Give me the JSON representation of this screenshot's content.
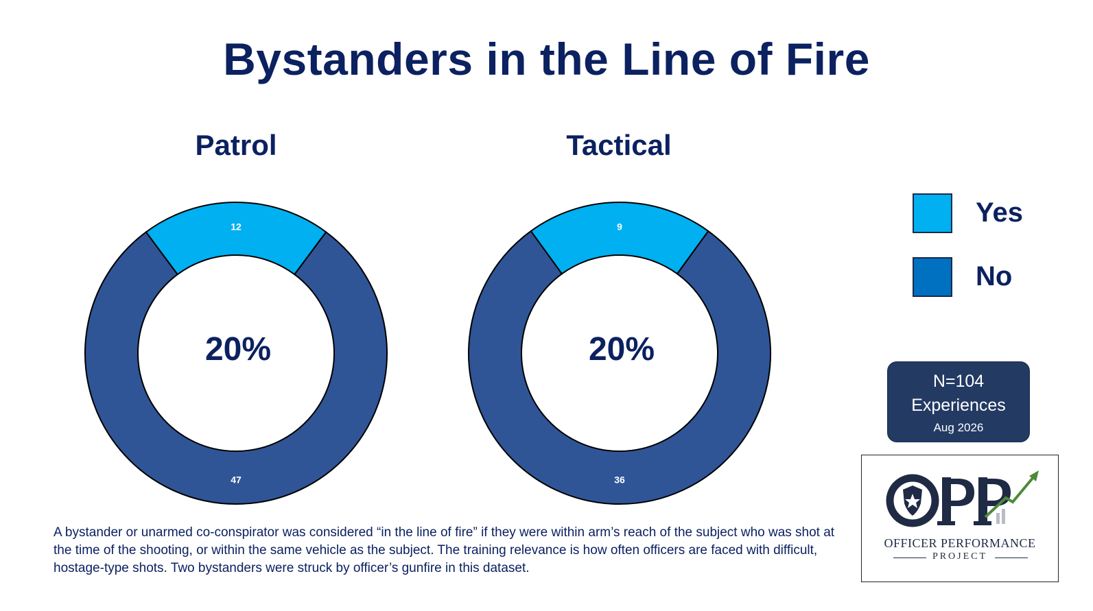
{
  "title": "Bystanders in the Line of Fire",
  "chart_data": [
    {
      "type": "pie",
      "title": "Patrol",
      "categories": [
        "Yes",
        "No"
      ],
      "values": [
        12,
        47
      ],
      "colors": [
        "#00b0f0",
        "#2f5597"
      ],
      "center_label": "20%"
    },
    {
      "type": "pie",
      "title": "Tactical",
      "categories": [
        "Yes",
        "No"
      ],
      "values": [
        9,
        36
      ],
      "colors": [
        "#00b0f0",
        "#2f5597"
      ],
      "center_label": "20%"
    }
  ],
  "legend": {
    "placement": "right",
    "items": [
      {
        "label": "Yes",
        "color": "#00b0f0"
      },
      {
        "label": "No",
        "color": "#0070c0"
      }
    ]
  },
  "sample_box": {
    "line1": "N=104",
    "line2": "Experiences",
    "line3": "Aug 2026"
  },
  "logo": {
    "line1": "OFFICER PERFORMANCE",
    "line2": "PROJECT"
  },
  "footnote": "A bystander or unarmed co-conspirator was considered “in the line of fire” if they were within arm’s reach of the subject who was shot at the time of the shooting, or within the same vehicle as the subject. The training relevance is how often officers are faced with difficult, hostage-type shots. Two bystanders were struck by officer’s gunfire in this dataset."
}
